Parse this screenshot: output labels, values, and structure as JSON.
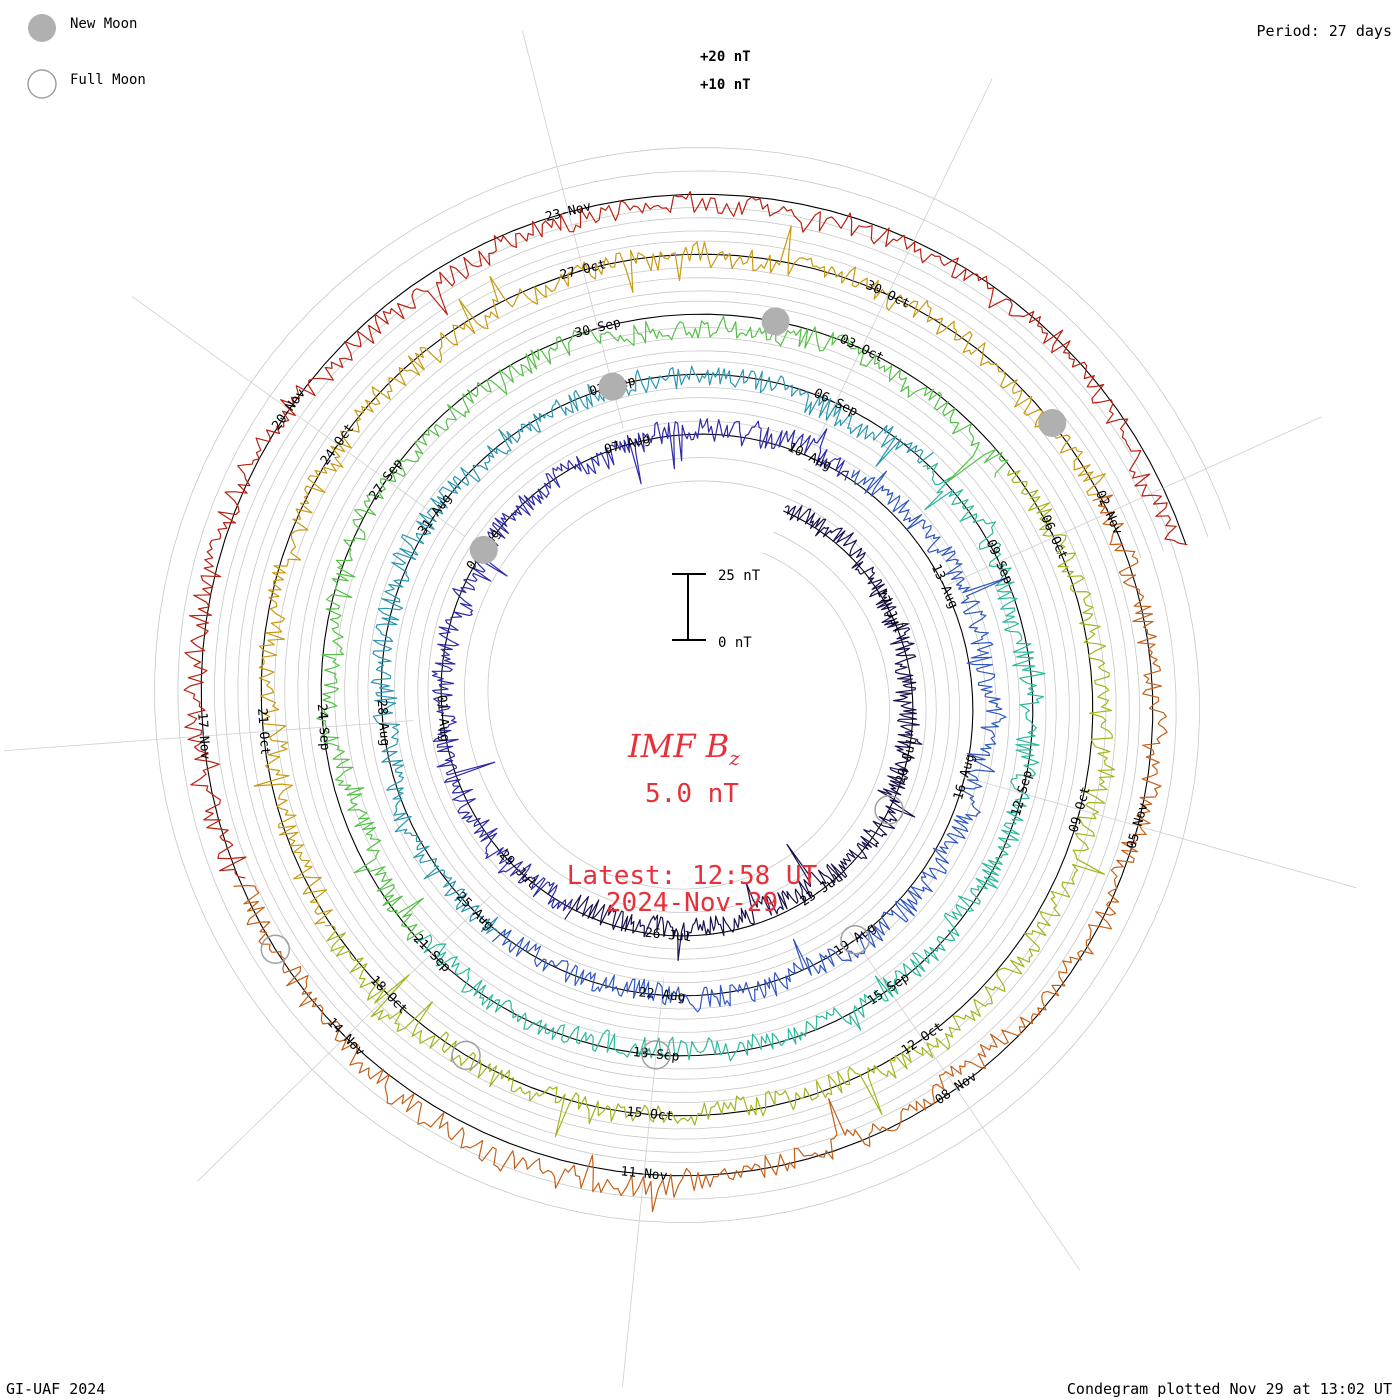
{
  "header": {
    "period_label": "Period: 27 days",
    "footer_left": "GI-UAF 2024",
    "footer_right": "Condegram plotted Nov 29 at 13:02 UT"
  },
  "legend": {
    "new_moon_label": "New Moon",
    "full_moon_label": "Full Moon",
    "new_moon_color": "#b0b0b0",
    "full_moon_color": "#a0a0a0"
  },
  "center": {
    "title_main": "IMF B",
    "title_sub": "z",
    "value": "5.0 nT",
    "latest_label": "Latest: 12:58 UT",
    "latest_date": "2024-Nov-29",
    "text_color": "#e8303a"
  },
  "scale_bar": {
    "top_label": "25 nT",
    "bottom_label": "0 nT"
  },
  "chart_data": {
    "type": "line",
    "title": "IMF Bz",
    "period_days": 27,
    "start_date": "2024-Jul-14",
    "end_date": "2024-Nov-29 12:58 UT",
    "latest_value_nT": 5.0,
    "reference_levels": [
      "+10 nT",
      "+20 nT"
    ],
    "grid": true,
    "series_colors": [
      "#1a0f4d",
      "#2e2aa8",
      "#2f57c2",
      "#2a96b0",
      "#2cb89a",
      "#55c048",
      "#a6b41c",
      "#c89a12",
      "#c46018",
      "#b82010"
    ],
    "date_labels": [
      "17-Jul",
      "20-Jul",
      "23-Jul",
      "26-Jul",
      "29-Jul",
      "01-Aug",
      "04-Aug",
      "07-Aug",
      "10-Aug",
      "13-Aug",
      "16-Aug",
      "19-Aug",
      "22-Aug",
      "25-Aug",
      "28-Aug",
      "31-Aug",
      "03-Sep",
      "06-Sep",
      "09-Sep",
      "12-Sep",
      "15-Sep",
      "18-Sep",
      "21-Sep",
      "24-Sep",
      "27-Sep",
      "30-Sep",
      "03-Oct",
      "06-Oct",
      "09-Oct",
      "12-Oct",
      "15-Oct",
      "18-Oct",
      "21-Oct",
      "24-Oct",
      "27-Oct",
      "30-Oct",
      "02-Nov",
      "05-Nov",
      "08-Nov",
      "11-Nov",
      "14-Nov",
      "17-Nov",
      "20-Nov",
      "23-Nov"
    ],
    "moon_phases": [
      {
        "type": "full",
        "date": "2024-Jul-21"
      },
      {
        "type": "new",
        "date": "2024-Aug-04"
      },
      {
        "type": "full",
        "date": "2024-Aug-19"
      },
      {
        "type": "new",
        "date": "2024-Sep-03"
      },
      {
        "type": "full",
        "date": "2024-Sep-18"
      },
      {
        "type": "new",
        "date": "2024-Oct-02"
      },
      {
        "type": "full",
        "date": "2024-Oct-17"
      },
      {
        "type": "new",
        "date": "2024-Nov-01"
      },
      {
        "type": "full",
        "date": "2024-Nov-15"
      }
    ]
  }
}
